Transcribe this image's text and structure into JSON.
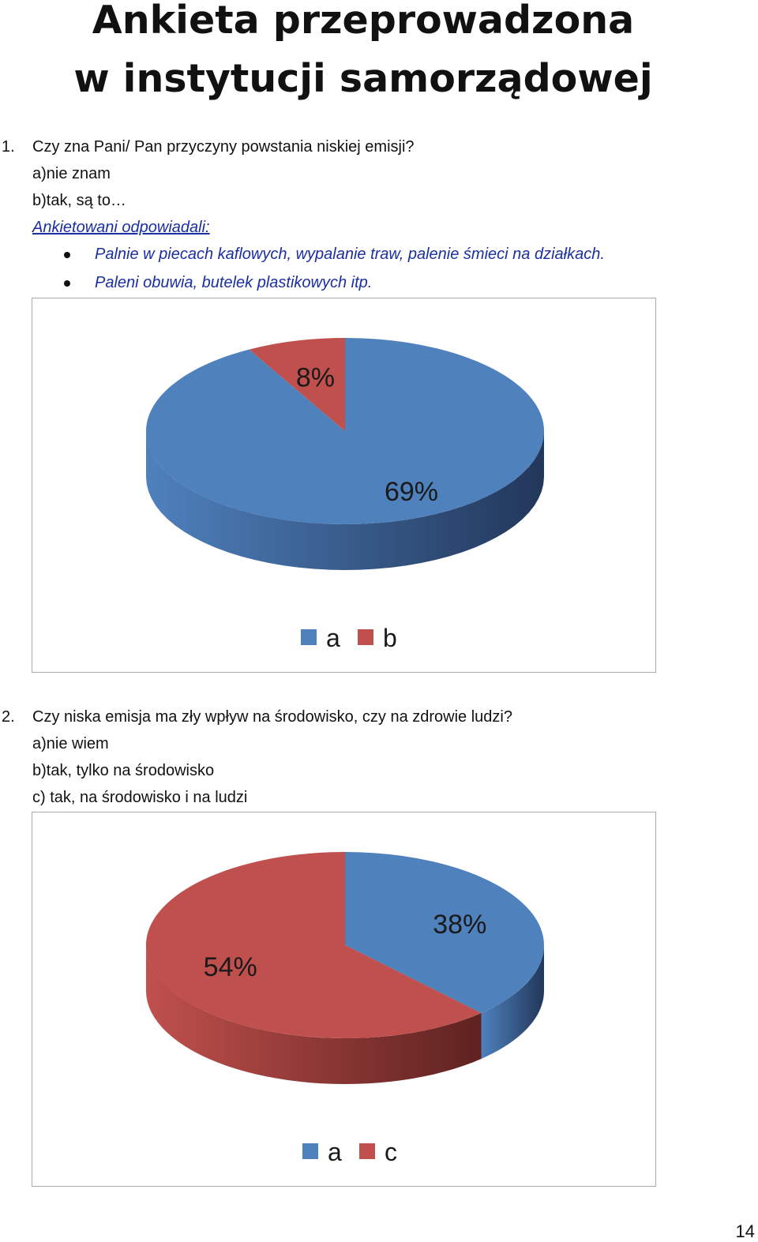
{
  "header": {
    "title_line1": "Ankieta przeprowadzona",
    "title_line2": "w instytucji samorządowej"
  },
  "q1": {
    "number": "1.",
    "question": "Czy zna Pani/ Pan przyczyny powstania niskiej emisji?",
    "option_a": "a)nie znam",
    "option_b": "b)tak, są to…",
    "answers_heading": "Ankietowani odpowiadali:",
    "answers": [
      "Palnie w piecach kaflowych, wypalanie traw, palenie śmieci na działkach.",
      "Paleni obuwia, butelek plastikowych itp."
    ]
  },
  "q2": {
    "number": "2.",
    "question": "Czy niska emisja ma zły wpływ na środowisko, czy na zdrowie ludzi?",
    "option_a": "a)nie wiem",
    "option_b": "b)tak, tylko na środowisko",
    "option_c": "c) tak, na środowisko i na ludzi"
  },
  "chart_data": [
    {
      "type": "pie",
      "title": "",
      "slices": [
        {
          "label": "a",
          "value": 69,
          "text": "69%",
          "color": "#4f81bd",
          "dark": "#22375a"
        },
        {
          "label": "b",
          "value": 8,
          "text": "8%",
          "color": "#c0504d",
          "dark": "#5e2220"
        }
      ],
      "legend": [
        "a",
        "b"
      ],
      "legend_position": "bottom"
    },
    {
      "type": "pie",
      "title": "",
      "slices": [
        {
          "label": "a",
          "value": 38,
          "text": "38%",
          "color": "#4f81bd",
          "dark": "#22375a"
        },
        {
          "label": "c",
          "value": 54,
          "text": "54%",
          "color": "#c0504d",
          "dark": "#5e2220"
        }
      ],
      "legend": [
        "a",
        "c"
      ],
      "legend_position": "bottom"
    }
  ],
  "footer": {
    "page_number": "14"
  }
}
